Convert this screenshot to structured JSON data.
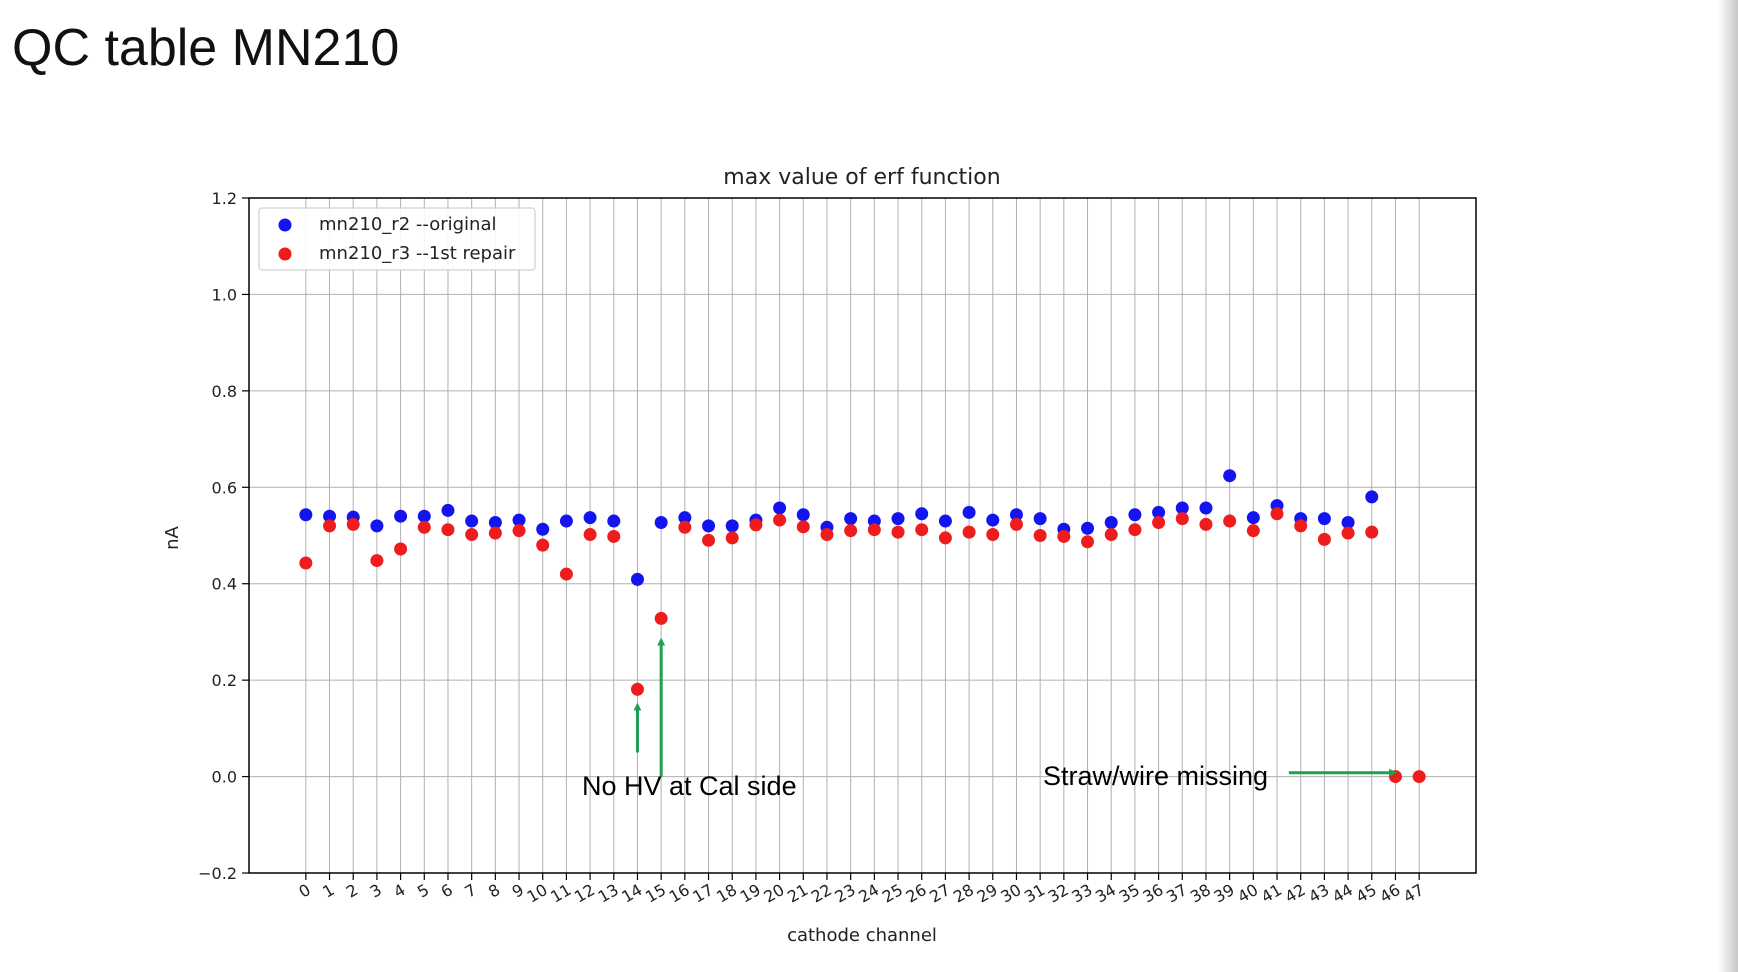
{
  "slide": {
    "title": "QC table MN210"
  },
  "chart_data": {
    "type": "scatter",
    "title": "max value of erf function",
    "xlabel": "cathode channel",
    "ylabel": "nA",
    "ylim": [
      -0.2,
      1.2
    ],
    "yticks": [
      -0.2,
      0.0,
      0.2,
      0.4,
      0.6,
      0.8,
      1.0,
      1.2
    ],
    "ytick_labels": [
      "−0.2",
      "0.0",
      "0.2",
      "0.4",
      "0.6",
      "0.8",
      "1.0",
      "1.2"
    ],
    "xlim": [
      -2.4,
      49.4
    ],
    "x": [
      0,
      1,
      2,
      3,
      4,
      5,
      6,
      7,
      8,
      9,
      10,
      11,
      12,
      13,
      14,
      15,
      16,
      17,
      18,
      19,
      20,
      21,
      22,
      23,
      24,
      25,
      26,
      27,
      28,
      29,
      30,
      31,
      32,
      33,
      34,
      35,
      36,
      37,
      38,
      39,
      40,
      41,
      42,
      43,
      44,
      45,
      46,
      47
    ],
    "xtick_labels": [
      "0",
      "1",
      "2",
      "3",
      "4",
      "5",
      "6",
      "7",
      "8",
      "9",
      "10",
      "11",
      "12",
      "13",
      "14",
      "15",
      "16",
      "17",
      "18",
      "19",
      "20",
      "21",
      "22",
      "23",
      "24",
      "25",
      "26",
      "27",
      "28",
      "29",
      "30",
      "31",
      "32",
      "33",
      "34",
      "35",
      "36",
      "37",
      "38",
      "39",
      "40",
      "41",
      "42",
      "43",
      "44",
      "45",
      "46",
      "47"
    ],
    "grid": true,
    "legend_position": "top-left",
    "series": [
      {
        "name": "mn210_r2 --original",
        "color": "#1414f0",
        "points": [
          [
            0,
            0.543
          ],
          [
            1,
            0.54
          ],
          [
            2,
            0.538
          ],
          [
            3,
            0.52
          ],
          [
            4,
            0.54
          ],
          [
            5,
            0.54
          ],
          [
            6,
            0.552
          ],
          [
            7,
            0.53
          ],
          [
            8,
            0.527
          ],
          [
            9,
            0.532
          ],
          [
            10,
            0.513
          ],
          [
            11,
            0.53
          ],
          [
            12,
            0.537
          ],
          [
            13,
            0.53
          ],
          [
            14,
            0.409
          ],
          [
            15,
            0.527
          ],
          [
            16,
            0.537
          ],
          [
            17,
            0.52
          ],
          [
            18,
            0.52
          ],
          [
            19,
            0.532
          ],
          [
            20,
            0.557
          ],
          [
            21,
            0.543
          ],
          [
            22,
            0.517
          ],
          [
            23,
            0.535
          ],
          [
            24,
            0.53
          ],
          [
            25,
            0.535
          ],
          [
            26,
            0.545
          ],
          [
            27,
            0.53
          ],
          [
            28,
            0.548
          ],
          [
            29,
            0.532
          ],
          [
            30,
            0.543
          ],
          [
            31,
            0.535
          ],
          [
            32,
            0.513
          ],
          [
            33,
            0.515
          ],
          [
            34,
            0.527
          ],
          [
            35,
            0.543
          ],
          [
            36,
            0.548
          ],
          [
            37,
            0.557
          ],
          [
            38,
            0.557
          ],
          [
            39,
            0.624
          ],
          [
            40,
            0.537
          ],
          [
            41,
            0.562
          ],
          [
            42,
            0.535
          ],
          [
            43,
            0.535
          ],
          [
            44,
            0.527
          ],
          [
            45,
            0.58
          ]
        ]
      },
      {
        "name": "mn210_r3 --1st repair",
        "color": "#ee1c1c",
        "points": [
          [
            0,
            0.443
          ],
          [
            1,
            0.52
          ],
          [
            2,
            0.523
          ],
          [
            3,
            0.448
          ],
          [
            4,
            0.472
          ],
          [
            5,
            0.517
          ],
          [
            6,
            0.512
          ],
          [
            7,
            0.502
          ],
          [
            8,
            0.505
          ],
          [
            9,
            0.51
          ],
          [
            10,
            0.48
          ],
          [
            11,
            0.42
          ],
          [
            12,
            0.502
          ],
          [
            13,
            0.498
          ],
          [
            14,
            0.181
          ],
          [
            15,
            0.328
          ],
          [
            16,
            0.517
          ],
          [
            17,
            0.49
          ],
          [
            18,
            0.495
          ],
          [
            19,
            0.522
          ],
          [
            20,
            0.532
          ],
          [
            21,
            0.518
          ],
          [
            22,
            0.502
          ],
          [
            23,
            0.51
          ],
          [
            24,
            0.512
          ],
          [
            25,
            0.507
          ],
          [
            26,
            0.512
          ],
          [
            27,
            0.495
          ],
          [
            28,
            0.507
          ],
          [
            29,
            0.502
          ],
          [
            30,
            0.523
          ],
          [
            31,
            0.5
          ],
          [
            32,
            0.498
          ],
          [
            33,
            0.487
          ],
          [
            34,
            0.502
          ],
          [
            35,
            0.512
          ],
          [
            36,
            0.527
          ],
          [
            37,
            0.535
          ],
          [
            38,
            0.523
          ],
          [
            39,
            0.53
          ],
          [
            40,
            0.51
          ],
          [
            41,
            0.545
          ],
          [
            42,
            0.52
          ],
          [
            43,
            0.492
          ],
          [
            44,
            0.505
          ],
          [
            45,
            0.507
          ],
          [
            46,
            0.0
          ],
          [
            47,
            0.0
          ]
        ]
      }
    ],
    "annotations": [
      {
        "id": "no-hv",
        "text": "No HV at Cal side",
        "arrows": [
          {
            "x": 14,
            "y_from": 0.05,
            "y_to": 0.145
          },
          {
            "x": 15,
            "y_from": 0.0,
            "y_to": 0.28
          }
        ]
      },
      {
        "id": "straw-missing",
        "text": "Straw/wire missing",
        "arrows": [
          {
            "x_from": 41.5,
            "x_to": 45.9,
            "y": 0.008
          }
        ]
      }
    ],
    "annotation_color": "#1ea050"
  }
}
